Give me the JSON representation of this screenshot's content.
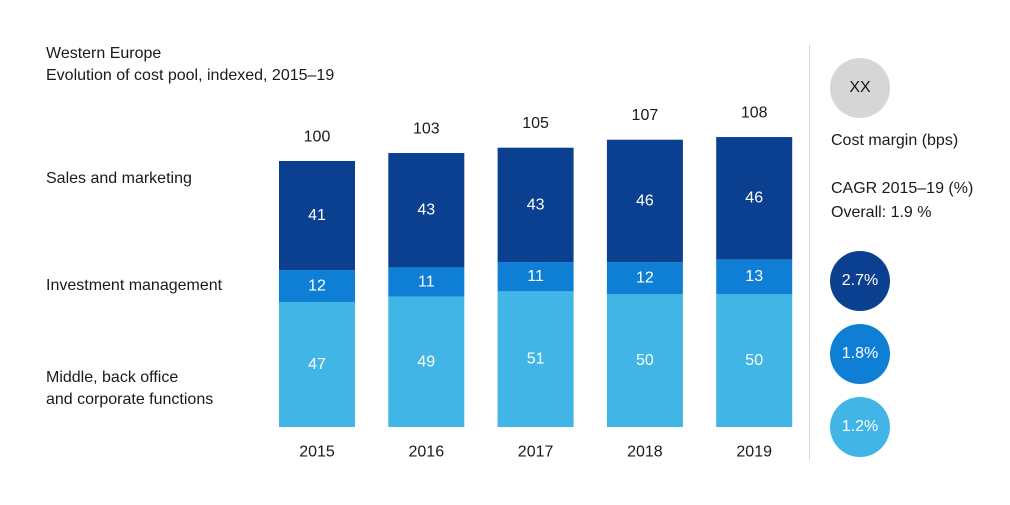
{
  "header": {
    "title": "Western Europe",
    "subtitle": "Evolution of cost pool, indexed, 2015–19"
  },
  "row_labels": {
    "sales": "Sales and marketing",
    "investment": "Investment management",
    "middle_line1": "Middle, back office",
    "middle_line2": "and corporate functions"
  },
  "side_panel": {
    "cost_margin_badge": "XX",
    "cost_margin_label": "Cost margin (bps)",
    "cagr_label": "CAGR 2015–19 (%)",
    "overall_label": "Overall: 1.9 %",
    "cagr_values": [
      "2.7%",
      "1.8%",
      "1.2%"
    ]
  },
  "colors": {
    "sales": "#0b3f8f",
    "investment": "#0f7fd6",
    "middle": "#41b5e6",
    "badge": "#d6d6d6"
  },
  "chart_data": {
    "type": "bar",
    "stacked": true,
    "categories": [
      "2015",
      "2016",
      "2017",
      "2018",
      "2019"
    ],
    "totals": [
      100,
      103,
      105,
      107,
      108
    ],
    "series": [
      {
        "name": "Middle, back office and corporate functions",
        "values": [
          47,
          49,
          51,
          50,
          50
        ]
      },
      {
        "name": "Investment management",
        "values": [
          12,
          11,
          11,
          12,
          13
        ]
      },
      {
        "name": "Sales and marketing",
        "values": [
          41,
          43,
          43,
          46,
          46
        ]
      }
    ],
    "title": "Western Europe",
    "subtitle": "Evolution of cost pool, indexed, 2015–19",
    "xlabel": "",
    "ylabel": "",
    "ylim": [
      0,
      108
    ],
    "grid": false,
    "legend": "left"
  }
}
